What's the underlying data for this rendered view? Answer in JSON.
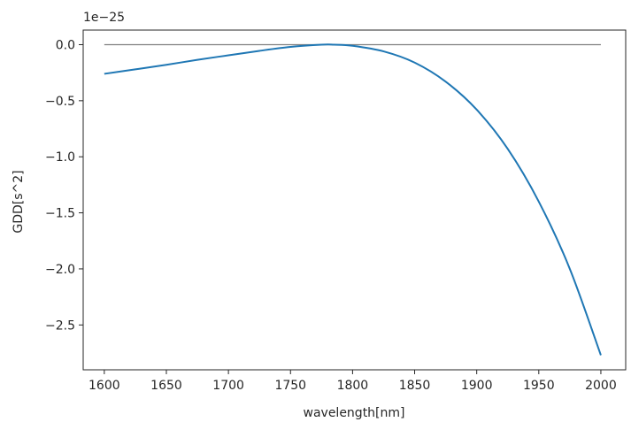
{
  "chart_data": {
    "type": "line",
    "title": "",
    "xlabel": "wavelength[nm]",
    "ylabel": "GDD[s^2]",
    "y_offset_label": "1e−25",
    "xlim": [
      1583,
      2020
    ],
    "ylim": [
      -2.9,
      0.13
    ],
    "y_scale_factor": 1e-25,
    "x_ticks": [
      1600,
      1650,
      1700,
      1750,
      1800,
      1850,
      1900,
      1950,
      2000
    ],
    "x_tick_labels": [
      "1600",
      "1650",
      "1700",
      "1750",
      "1800",
      "1850",
      "1900",
      "1950",
      "2000"
    ],
    "y_ticks": [
      0.0,
      -0.5,
      -1.0,
      -1.5,
      -2.0,
      -2.5
    ],
    "y_tick_labels": [
      "0.0",
      "−0.5",
      "−1.0",
      "−1.5",
      "−2.0",
      "−2.5"
    ],
    "grid": false,
    "colors": {
      "series": "#1f77b4",
      "reference": "#808080",
      "axes": "#262626"
    },
    "reference_line": {
      "x": [
        1600,
        2000
      ],
      "y": [
        0.0,
        0.0
      ]
    },
    "series": [
      {
        "x": [
          1600,
          1625,
          1650,
          1675,
          1700,
          1725,
          1750,
          1775,
          1785,
          1800,
          1825,
          1850,
          1875,
          1900,
          1925,
          1950,
          1975,
          2000
        ],
        "y": [
          -0.26,
          -0.22,
          -0.18,
          -0.135,
          -0.095,
          -0.055,
          -0.02,
          0.0,
          0.0,
          -0.01,
          -0.06,
          -0.16,
          -0.33,
          -0.58,
          -0.93,
          -1.4,
          -2.0,
          -2.77
        ]
      }
    ]
  }
}
